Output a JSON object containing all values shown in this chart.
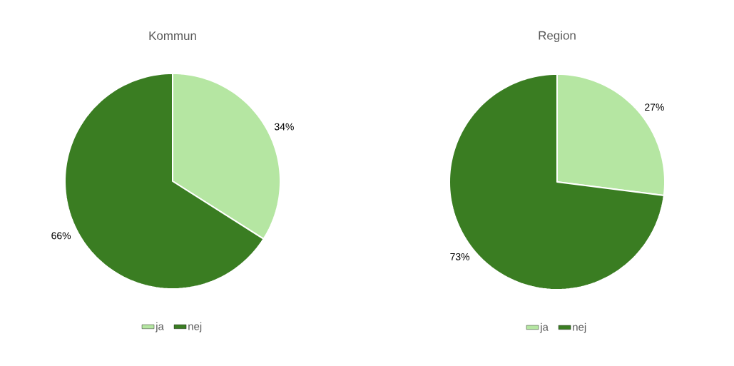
{
  "chart_data": [
    {
      "type": "pie",
      "title": "Kommun",
      "categories": [
        "ja",
        "nej"
      ],
      "values": [
        34,
        66
      ],
      "value_labels": [
        "34%",
        "66%"
      ],
      "colors": [
        "#b5e6a2",
        "#3a7d22"
      ],
      "legend": "bottom"
    },
    {
      "type": "pie",
      "title": "Region",
      "categories": [
        "ja",
        "nej"
      ],
      "values": [
        27,
        73
      ],
      "value_labels": [
        "27%",
        "73%"
      ],
      "colors": [
        "#b5e6a2",
        "#3a7d22"
      ],
      "legend": "bottom"
    }
  ]
}
